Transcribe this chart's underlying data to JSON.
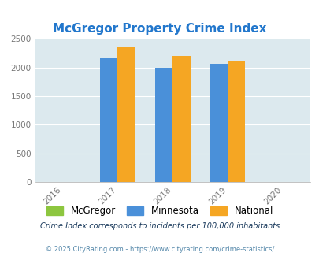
{
  "title": "McGregor Property Crime Index",
  "title_color": "#2277cc",
  "years": [
    2016,
    2017,
    2018,
    2019,
    2020
  ],
  "bar_years": [
    2017,
    2018,
    2019
  ],
  "mcgregor_values": [
    0,
    0,
    0
  ],
  "minnesota_values": [
    2175,
    2000,
    2065
  ],
  "national_values": [
    2350,
    2200,
    2105
  ],
  "mcgregor_color": "#8dc63f",
  "minnesota_color": "#4a90d9",
  "national_color": "#f5a623",
  "bg_color": "#dce9ee",
  "ylim": [
    0,
    2500
  ],
  "yticks": [
    0,
    500,
    1000,
    1500,
    2000,
    2500
  ],
  "legend_labels": [
    "McGregor",
    "Minnesota",
    "National"
  ],
  "footnote1": "Crime Index corresponds to incidents per 100,000 inhabitants",
  "footnote2": "© 2025 CityRating.com - https://www.cityrating.com/crime-statistics/",
  "footnote1_color": "#1a3a5c",
  "footnote2_color": "#5588aa",
  "bar_width": 0.32
}
